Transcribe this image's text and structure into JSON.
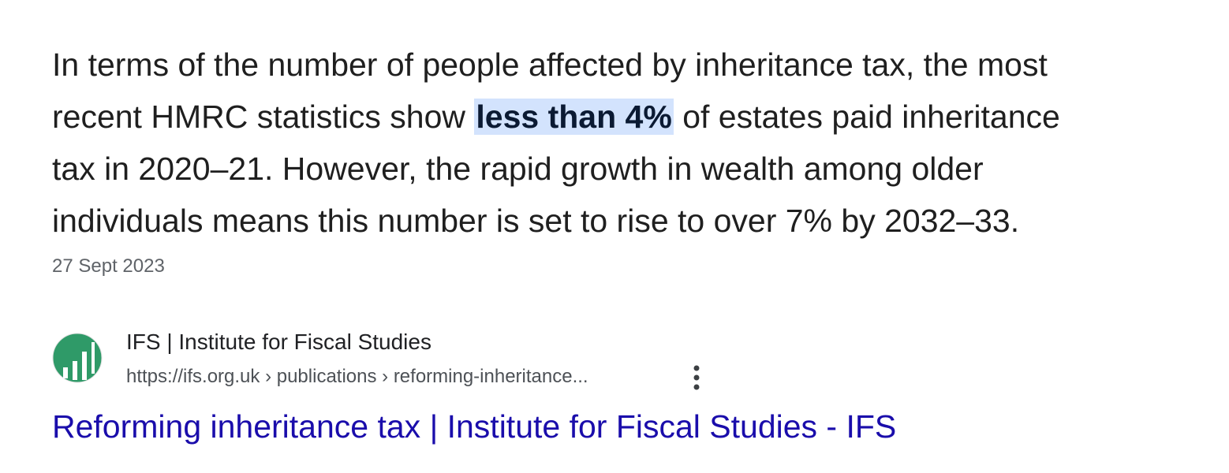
{
  "snippet": {
    "line_1": "In terms of the number of people affected by inheritance tax, the most",
    "line_2_start": "recent HMRC statistics show ",
    "highlight": "less than 4%",
    "line_2_end": " of estates paid inheritance",
    "line_3": "tax in 2020–21. However, the rapid growth in wealth among older",
    "line_4": "individuals means this number is set to rise to over 7% by 2032–33.",
    "date": "27 Sept 2023"
  },
  "source": {
    "site_name": "IFS | Institute for Fiscal Studies",
    "url": "https://ifs.org.uk › publications › reforming-inheritance...",
    "title": "Reforming inheritance tax | Institute for Fiscal Studies - IFS"
  }
}
